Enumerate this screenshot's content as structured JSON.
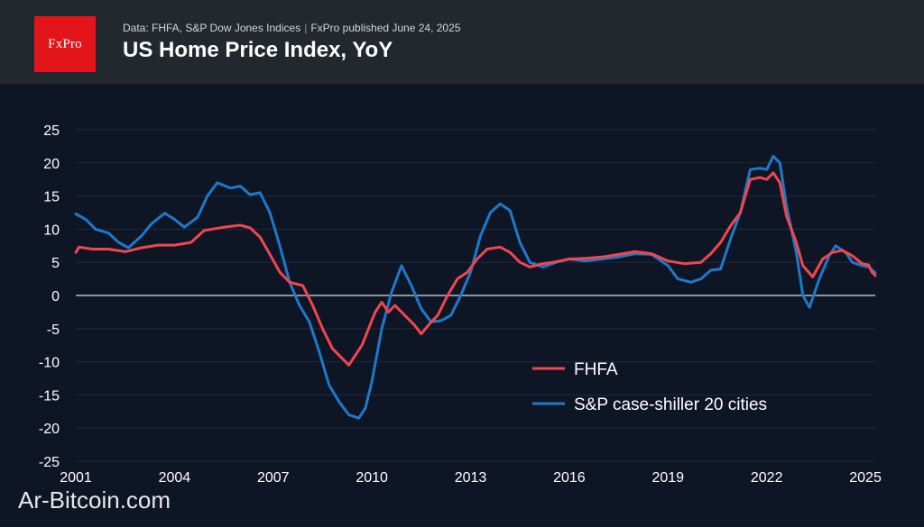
{
  "header": {
    "logo_text": "FxPro",
    "source": "Data: FHFA, S&P Dow Jones Indices",
    "published": "FxPro published June 24, 2025",
    "separator": "|",
    "title": "US Home Price Index, YoY"
  },
  "watermark": "Ar-Bitcoin.com",
  "chart_data": {
    "type": "line",
    "title": "US Home Price Index, YoY",
    "xlim": [
      2001,
      2025.3
    ],
    "ylim": [
      -25,
      25
    ],
    "x_ticks": [
      2001,
      2004,
      2007,
      2010,
      2013,
      2016,
      2019,
      2022,
      2025
    ],
    "y_ticks": [
      25,
      20,
      15,
      10,
      5,
      0,
      -5,
      -10,
      -15,
      -20,
      -25
    ],
    "grid": "horizontal",
    "zero_line": true,
    "legend_position": "lower-right",
    "series": [
      {
        "name": "FHFA",
        "color": "#f2464d",
        "points": [
          [
            2001.0,
            6.5
          ],
          [
            2001.1,
            7.3
          ],
          [
            2001.5,
            7.0
          ],
          [
            2002.0,
            7.0
          ],
          [
            2002.5,
            6.6
          ],
          [
            2003.0,
            7.2
          ],
          [
            2003.5,
            7.6
          ],
          [
            2004.0,
            7.6
          ],
          [
            2004.5,
            8.0
          ],
          [
            2004.9,
            9.8
          ],
          [
            2005.5,
            10.3
          ],
          [
            2006.0,
            10.6
          ],
          [
            2006.3,
            10.2
          ],
          [
            2006.6,
            8.8
          ],
          [
            2006.9,
            6.2
          ],
          [
            2007.2,
            3.5
          ],
          [
            2007.5,
            2.0
          ],
          [
            2007.9,
            1.5
          ],
          [
            2008.2,
            -1.5
          ],
          [
            2008.5,
            -5.0
          ],
          [
            2008.8,
            -8.0
          ],
          [
            2009.1,
            -9.5
          ],
          [
            2009.3,
            -10.5
          ],
          [
            2009.5,
            -9.0
          ],
          [
            2009.7,
            -7.5
          ],
          [
            2009.9,
            -5.0
          ],
          [
            2010.1,
            -2.5
          ],
          [
            2010.3,
            -1.0
          ],
          [
            2010.5,
            -2.5
          ],
          [
            2010.7,
            -1.5
          ],
          [
            2011.0,
            -3.0
          ],
          [
            2011.3,
            -4.5
          ],
          [
            2011.5,
            -5.8
          ],
          [
            2011.8,
            -4.0
          ],
          [
            2012.0,
            -3.0
          ],
          [
            2012.3,
            0.0
          ],
          [
            2012.6,
            2.5
          ],
          [
            2012.9,
            3.5
          ],
          [
            2013.2,
            5.5
          ],
          [
            2013.5,
            7.0
          ],
          [
            2013.9,
            7.3
          ],
          [
            2014.2,
            6.5
          ],
          [
            2014.5,
            5.0
          ],
          [
            2014.8,
            4.3
          ],
          [
            2015.2,
            4.8
          ],
          [
            2015.5,
            5.0
          ],
          [
            2016.0,
            5.5
          ],
          [
            2016.5,
            5.6
          ],
          [
            2017.0,
            5.8
          ],
          [
            2017.5,
            6.2
          ],
          [
            2018.0,
            6.6
          ],
          [
            2018.5,
            6.3
          ],
          [
            2019.0,
            5.2
          ],
          [
            2019.5,
            4.8
          ],
          [
            2020.0,
            5.0
          ],
          [
            2020.3,
            6.3
          ],
          [
            2020.6,
            8.0
          ],
          [
            2020.9,
            10.5
          ],
          [
            2021.2,
            12.5
          ],
          [
            2021.5,
            17.5
          ],
          [
            2021.8,
            17.8
          ],
          [
            2022.0,
            17.5
          ],
          [
            2022.2,
            18.5
          ],
          [
            2022.4,
            17.0
          ],
          [
            2022.6,
            12.0
          ],
          [
            2022.9,
            8.0
          ],
          [
            2023.1,
            4.5
          ],
          [
            2023.4,
            2.8
          ],
          [
            2023.7,
            5.5
          ],
          [
            2024.0,
            6.5
          ],
          [
            2024.3,
            6.8
          ],
          [
            2024.6,
            6.0
          ],
          [
            2024.9,
            4.8
          ],
          [
            2025.1,
            4.6
          ],
          [
            2025.2,
            3.5
          ],
          [
            2025.3,
            3.0
          ]
        ]
      },
      {
        "name": "S&P case-shiller 20 cities",
        "color": "#1f78c8",
        "points": [
          [
            2001.0,
            12.3
          ],
          [
            2001.3,
            11.5
          ],
          [
            2001.6,
            10.0
          ],
          [
            2002.0,
            9.4
          ],
          [
            2002.3,
            8.0
          ],
          [
            2002.6,
            7.2
          ],
          [
            2003.0,
            9.0
          ],
          [
            2003.3,
            10.8
          ],
          [
            2003.7,
            12.4
          ],
          [
            2004.0,
            11.5
          ],
          [
            2004.3,
            10.3
          ],
          [
            2004.7,
            11.8
          ],
          [
            2005.0,
            15.0
          ],
          [
            2005.3,
            17.0
          ],
          [
            2005.7,
            16.2
          ],
          [
            2006.0,
            16.5
          ],
          [
            2006.3,
            15.2
          ],
          [
            2006.6,
            15.5
          ],
          [
            2006.9,
            12.5
          ],
          [
            2007.2,
            7.5
          ],
          [
            2007.5,
            2.0
          ],
          [
            2007.8,
            -1.5
          ],
          [
            2008.1,
            -4.0
          ],
          [
            2008.4,
            -8.5
          ],
          [
            2008.7,
            -13.5
          ],
          [
            2009.0,
            -16.0
          ],
          [
            2009.3,
            -18.0
          ],
          [
            2009.6,
            -18.5
          ],
          [
            2009.8,
            -17.0
          ],
          [
            2010.0,
            -13.0
          ],
          [
            2010.3,
            -5.0
          ],
          [
            2010.6,
            0.5
          ],
          [
            2010.9,
            4.5
          ],
          [
            2011.2,
            1.5
          ],
          [
            2011.5,
            -2.0
          ],
          [
            2011.8,
            -4.0
          ],
          [
            2012.1,
            -3.8
          ],
          [
            2012.4,
            -3.0
          ],
          [
            2012.7,
            0.0
          ],
          [
            2013.0,
            3.5
          ],
          [
            2013.3,
            9.0
          ],
          [
            2013.6,
            12.5
          ],
          [
            2013.9,
            13.8
          ],
          [
            2014.2,
            12.8
          ],
          [
            2014.5,
            8.0
          ],
          [
            2014.8,
            5.0
          ],
          [
            2015.2,
            4.3
          ],
          [
            2015.6,
            5.0
          ],
          [
            2016.0,
            5.5
          ],
          [
            2016.5,
            5.2
          ],
          [
            2017.0,
            5.5
          ],
          [
            2017.5,
            5.8
          ],
          [
            2018.0,
            6.3
          ],
          [
            2018.5,
            6.2
          ],
          [
            2019.0,
            4.5
          ],
          [
            2019.3,
            2.5
          ],
          [
            2019.7,
            2.0
          ],
          [
            2020.0,
            2.5
          ],
          [
            2020.3,
            3.8
          ],
          [
            2020.6,
            4.0
          ],
          [
            2020.9,
            8.5
          ],
          [
            2021.2,
            12.5
          ],
          [
            2021.5,
            19.0
          ],
          [
            2021.8,
            19.2
          ],
          [
            2022.0,
            19.0
          ],
          [
            2022.2,
            21.0
          ],
          [
            2022.4,
            20.0
          ],
          [
            2022.6,
            13.5
          ],
          [
            2022.9,
            6.5
          ],
          [
            2023.1,
            0.0
          ],
          [
            2023.3,
            -1.8
          ],
          [
            2023.6,
            2.5
          ],
          [
            2023.9,
            6.0
          ],
          [
            2024.1,
            7.5
          ],
          [
            2024.4,
            6.5
          ],
          [
            2024.6,
            5.0
          ],
          [
            2024.9,
            4.5
          ],
          [
            2025.1,
            4.3
          ],
          [
            2025.3,
            3.4
          ]
        ]
      }
    ]
  }
}
